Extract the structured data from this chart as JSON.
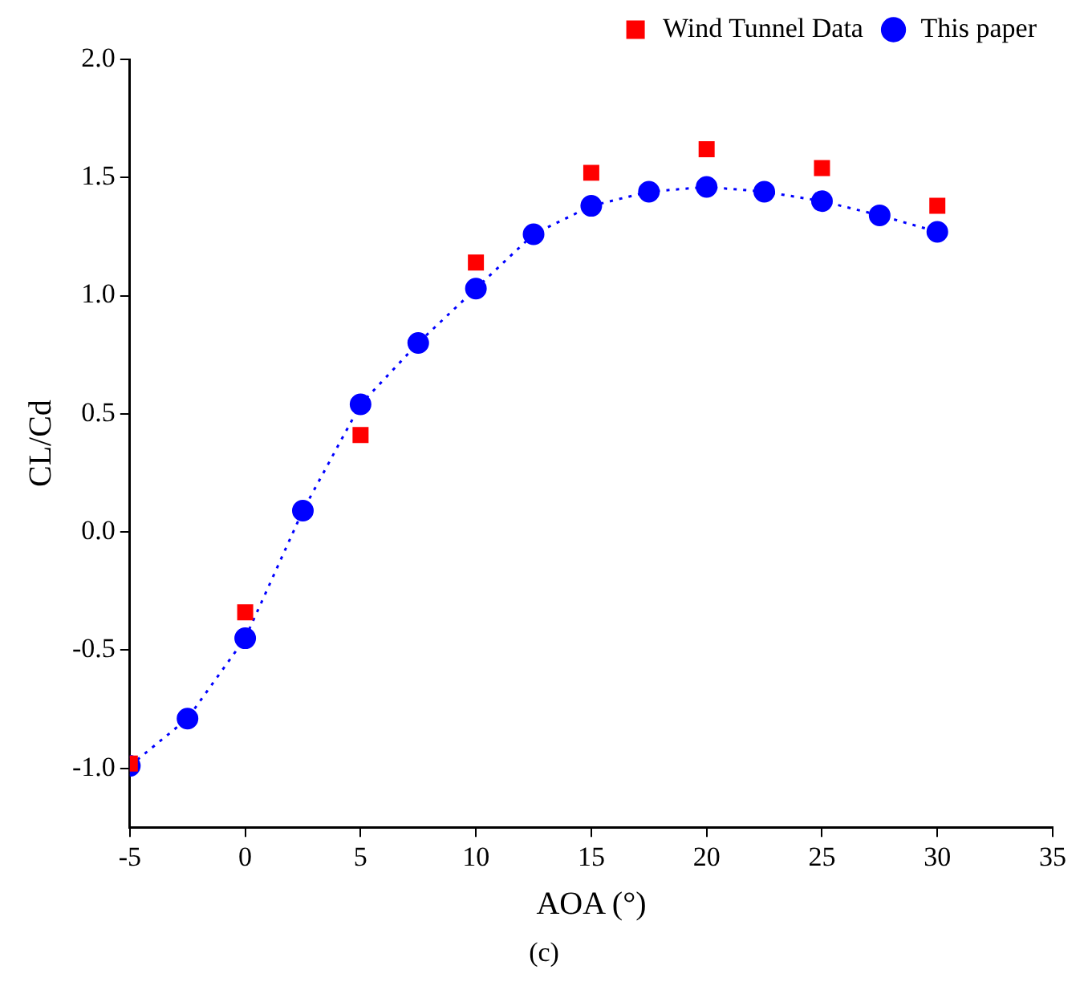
{
  "chart_data": {
    "type": "line",
    "xlabel": "AOA (°)",
    "ylabel": "CL/Cd",
    "xlim": [
      -5,
      35
    ],
    "xticks": [
      -5,
      0,
      5,
      10,
      15,
      20,
      25,
      30,
      35
    ],
    "ylim": [
      -1.25,
      2.0
    ],
    "yticks": [
      {
        "value": -1,
        "label": "-1.0"
      },
      {
        "value": -0.5,
        "label": "-0.5"
      },
      {
        "value": 0,
        "label": "0.0"
      },
      {
        "value": 0.5,
        "label": "0.5"
      },
      {
        "value": 1,
        "label": "1.0"
      },
      {
        "value": 1.5,
        "label": "1.5"
      },
      {
        "value": 2,
        "label": "2.0"
      }
    ],
    "grid": false,
    "legend": "top right",
    "series": [
      {
        "name": "Wind Tunnel Data",
        "type": "scatter",
        "marker": "square",
        "color": "#ff0000",
        "x": [
          -5,
          0,
          5,
          10,
          15,
          20,
          25,
          30
        ],
        "values": [
          -0.98,
          -0.34,
          0.41,
          1.14,
          1.52,
          1.62,
          1.54,
          1.38
        ]
      },
      {
        "name": "This paper",
        "type": "line",
        "marker": "circle",
        "line_style": "dotted",
        "color": "#0000ff",
        "x": [
          -5,
          -2.5,
          0,
          2.5,
          5,
          7.5,
          10,
          12.5,
          15,
          17.5,
          20,
          22.5,
          25,
          27.5,
          30
        ],
        "values": [
          -0.99,
          -0.79,
          -0.45,
          0.09,
          0.54,
          0.8,
          1.03,
          1.26,
          1.38,
          1.44,
          1.46,
          1.44,
          1.4,
          1.34,
          1.27
        ]
      }
    ],
    "annotations": [
      "(c)"
    ]
  }
}
